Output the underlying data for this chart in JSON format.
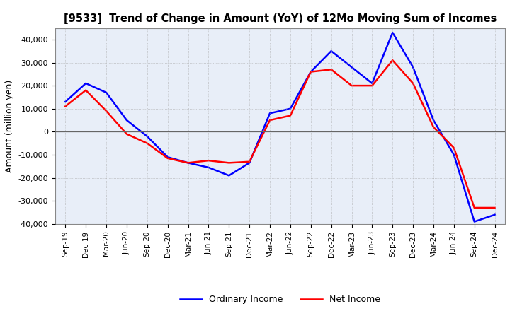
{
  "title": "[9533]  Trend of Change in Amount (YoY) of 12Mo Moving Sum of Incomes",
  "ylabel": "Amount (million yen)",
  "x_labels": [
    "Sep-19",
    "Dec-19",
    "Mar-20",
    "Jun-20",
    "Sep-20",
    "Dec-20",
    "Mar-21",
    "Jun-21",
    "Sep-21",
    "Dec-21",
    "Mar-22",
    "Jun-22",
    "Sep-22",
    "Dec-22",
    "Mar-23",
    "Jun-23",
    "Sep-23",
    "Dec-23",
    "Mar-24",
    "Jun-24",
    "Sep-24",
    "Dec-24"
  ],
  "ordinary_income": [
    13000,
    21000,
    17000,
    5000,
    -2000,
    -11000,
    -13500,
    -15500,
    -19000,
    -13500,
    8000,
    10000,
    26000,
    35000,
    28000,
    21000,
    43000,
    28000,
    5000,
    -10000,
    -39000,
    -36000
  ],
  "net_income": [
    11000,
    18000,
    9000,
    -1000,
    -5000,
    -11500,
    -13500,
    -12500,
    -13500,
    -13000,
    5000,
    7000,
    26000,
    27000,
    20000,
    20000,
    31000,
    21000,
    2000,
    -7000,
    -33000,
    -33000
  ],
  "ordinary_color": "#0000ff",
  "net_color": "#ff0000",
  "ylim": [
    -40000,
    45000
  ],
  "yticks": [
    -40000,
    -30000,
    -20000,
    -10000,
    0,
    10000,
    20000,
    30000,
    40000
  ],
  "grid_color": "#aaaaaa",
  "plot_bg_color": "#e8eef8",
  "background_color": "#ffffff",
  "legend_labels": [
    "Ordinary Income",
    "Net Income"
  ]
}
